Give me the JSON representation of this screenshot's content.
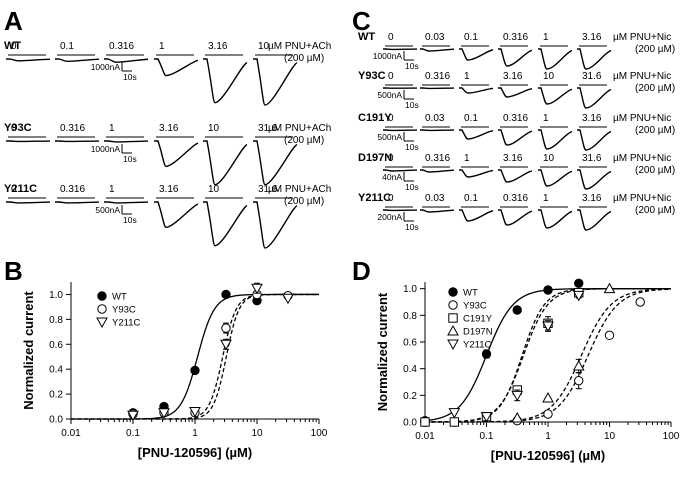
{
  "panels": {
    "A": {
      "letter": "A",
      "rows": [
        {
          "label": "WT",
          "concs": [
            "0",
            "0.1",
            "0.316",
            "1",
            "3.16",
            "10"
          ],
          "condition": [
            "µM PNU+ACh",
            "(200 µM)"
          ],
          "scale": {
            "amp": "1000nA",
            "time": "10s"
          },
          "amplitudes": [
            0.04,
            0.05,
            0.07,
            0.36,
            0.95,
            1.0
          ]
        },
        {
          "label": "Y93C",
          "concs": [
            "0",
            "0.316",
            "1",
            "3.16",
            "10",
            "31.6"
          ],
          "condition": [
            "µM PNU+ACh",
            "(200 µM)"
          ],
          "scale": {
            "amp": "1000nA",
            "time": "10s"
          },
          "amplitudes": [
            0.01,
            0.01,
            0.02,
            0.55,
            0.95,
            0.95
          ]
        },
        {
          "label": "Y211C",
          "concs": [
            "0",
            "0.316",
            "1",
            "3.16",
            "10",
            "31.6"
          ],
          "condition": [
            "µM PNU+ACh",
            "(200 µM)"
          ],
          "scale": {
            "amp": "500nA",
            "time": "10s"
          },
          "amplitudes": [
            0.02,
            0.02,
            0.02,
            0.55,
            0.95,
            1.0
          ]
        }
      ]
    },
    "C": {
      "letter": "C",
      "rows": [
        {
          "label": "WT",
          "concs": [
            "0",
            "0.03",
            "0.1",
            "0.316",
            "1",
            "3.16"
          ],
          "condition": [
            "µM PNU+Nic",
            "(200 µM)"
          ],
          "scale": {
            "amp": "1000nA",
            "time": "10s"
          },
          "amplitudes": [
            0.02,
            0.1,
            0.55,
            0.85,
            1.0,
            1.0
          ]
        },
        {
          "label": "Y93C",
          "concs": [
            "0",
            "0.316",
            "1",
            "3.16",
            "10",
            "31.6"
          ],
          "condition": [
            "µM PNU+Nic",
            "(200 µM)"
          ],
          "scale": {
            "amp": "500nA",
            "time": "10s"
          },
          "amplitudes": [
            0.01,
            0.02,
            0.25,
            0.45,
            0.8,
            1.0
          ]
        },
        {
          "label": "C191Y",
          "concs": [
            "0",
            "0.03",
            "0.1",
            "0.316",
            "1",
            "3.16"
          ],
          "condition": [
            "µM PNU+Nic",
            "(200 µM)"
          ],
          "scale": {
            "amp": "500nA",
            "time": "10s"
          },
          "amplitudes": [
            0.02,
            0.02,
            0.45,
            0.75,
            0.95,
            1.0
          ]
        },
        {
          "label": "D197N",
          "concs": [
            "0",
            "0.316",
            "1",
            "3.16",
            "10",
            "31.6"
          ],
          "condition": [
            "µM PNU+Nic",
            "(200 µM)"
          ],
          "scale": {
            "amp": "40nA",
            "time": "10s"
          },
          "amplitudes": [
            0.05,
            0.1,
            0.35,
            0.6,
            0.8,
            0.95
          ]
        },
        {
          "label": "Y211C",
          "concs": [
            "0",
            "0.03",
            "0.1",
            "0.316",
            "1",
            "3.16"
          ],
          "condition": [
            "µM PNU+Nic",
            "(200 µM)"
          ],
          "scale": {
            "amp": "200nA",
            "time": "10s"
          },
          "amplitudes": [
            0.02,
            0.1,
            0.55,
            0.75,
            0.9,
            1.0
          ]
        }
      ]
    },
    "B": {
      "letter": "B"
    },
    "D": {
      "letter": "D"
    }
  },
  "chart_data": [
    {
      "panel": "B",
      "type": "scatter",
      "xlabel": "[PNU-120596] (µM)",
      "ylabel": "Normalized current",
      "xscale": "log",
      "xlim": [
        0.01,
        100
      ],
      "ylim": [
        0,
        1.1
      ],
      "xticks": [
        "0.01",
        "0.1",
        "1",
        "10",
        "100"
      ],
      "yticks": [
        "0.0",
        "0.2",
        "0.4",
        "0.6",
        "0.8",
        "1.0"
      ],
      "legend_position": "left",
      "series": [
        {
          "name": "WT",
          "marker": "filled-circle",
          "line": "solid",
          "ec50": 1.1,
          "hill": 3.2,
          "x": [
            0.1,
            0.316,
            1,
            3.16,
            10
          ],
          "y": [
            0.05,
            0.1,
            0.39,
            1.0,
            0.95
          ],
          "err": [
            0,
            0,
            0,
            0,
            0
          ]
        },
        {
          "name": "Y93C",
          "marker": "open-circle",
          "line": "dashed",
          "ec50": 2.8,
          "hill": 4.0,
          "x": [
            0.1,
            0.316,
            1,
            3.16,
            10,
            31.6
          ],
          "y": [
            0.04,
            0.05,
            0.05,
            0.73,
            1.0,
            0.99
          ],
          "err": [
            0,
            0,
            0,
            0.04,
            0,
            0
          ]
        },
        {
          "name": "Y211C",
          "marker": "open-triangle-down",
          "line": "dashed",
          "ec50": 3.2,
          "hill": 4.2,
          "x": [
            0.1,
            0.316,
            1,
            3.16,
            10,
            31.6
          ],
          "y": [
            0.03,
            0.05,
            0.06,
            0.6,
            1.05,
            0.97
          ],
          "err": [
            0,
            0,
            0,
            0.04,
            0.04,
            0
          ]
        }
      ]
    },
    {
      "panel": "D",
      "type": "scatter",
      "xlabel": "[PNU-120596] (µM)",
      "ylabel": "Normalized current",
      "xscale": "log",
      "xlim": [
        0.01,
        100
      ],
      "ylim": [
        0,
        1.05
      ],
      "xticks": [
        "0.01",
        "0.1",
        "1",
        "10",
        "100"
      ],
      "yticks": [
        "0.0",
        "0.2",
        "0.4",
        "0.6",
        "0.8",
        "1.0"
      ],
      "legend_position": "left",
      "series": [
        {
          "name": "WT",
          "marker": "filled-circle",
          "line": "solid",
          "ec50": 0.1,
          "hill": 2.0,
          "x": [
            0.01,
            0.1,
            0.316,
            1,
            3.16
          ],
          "y": [
            0.01,
            0.51,
            0.84,
            0.99,
            1.04
          ],
          "err": [
            0,
            0.03,
            0,
            0,
            0
          ]
        },
        {
          "name": "Y93C",
          "marker": "open-circle",
          "line": "dashed",
          "ec50": 4.5,
          "hill": 1.8,
          "x": [
            0.316,
            1,
            3.16,
            10,
            31.6
          ],
          "y": [
            0.01,
            0.06,
            0.31,
            0.65,
            0.9
          ],
          "err": [
            0,
            0,
            0.06,
            0,
            0
          ]
        },
        {
          "name": "C191Y",
          "marker": "open-square",
          "line": "dashed",
          "ec50": 0.38,
          "hill": 2.4,
          "x": [
            0.01,
            0.03,
            0.1,
            0.316,
            1,
            3.16
          ],
          "y": [
            0.0,
            0.0,
            0.04,
            0.24,
            0.74,
            0.97
          ],
          "err": [
            0,
            0,
            0,
            0.03,
            0.05,
            0
          ]
        },
        {
          "name": "D197N",
          "marker": "open-triangle-up",
          "line": "dashed",
          "ec50": 3.5,
          "hill": 1.8,
          "x": [
            0.316,
            1,
            3.16,
            10
          ],
          "y": [
            0.03,
            0.18,
            0.42,
            1.0
          ],
          "err": [
            0,
            0,
            0.05,
            0
          ]
        },
        {
          "name": "Y211C",
          "marker": "open-triangle-down",
          "line": "dashed",
          "ec50": 0.4,
          "hill": 2.2,
          "x": [
            0.03,
            0.1,
            0.316,
            1,
            3.16
          ],
          "y": [
            0.07,
            0.04,
            0.2,
            0.72,
            0.95
          ],
          "err": [
            0,
            0,
            0.04,
            0.04,
            0.02
          ]
        }
      ]
    }
  ]
}
